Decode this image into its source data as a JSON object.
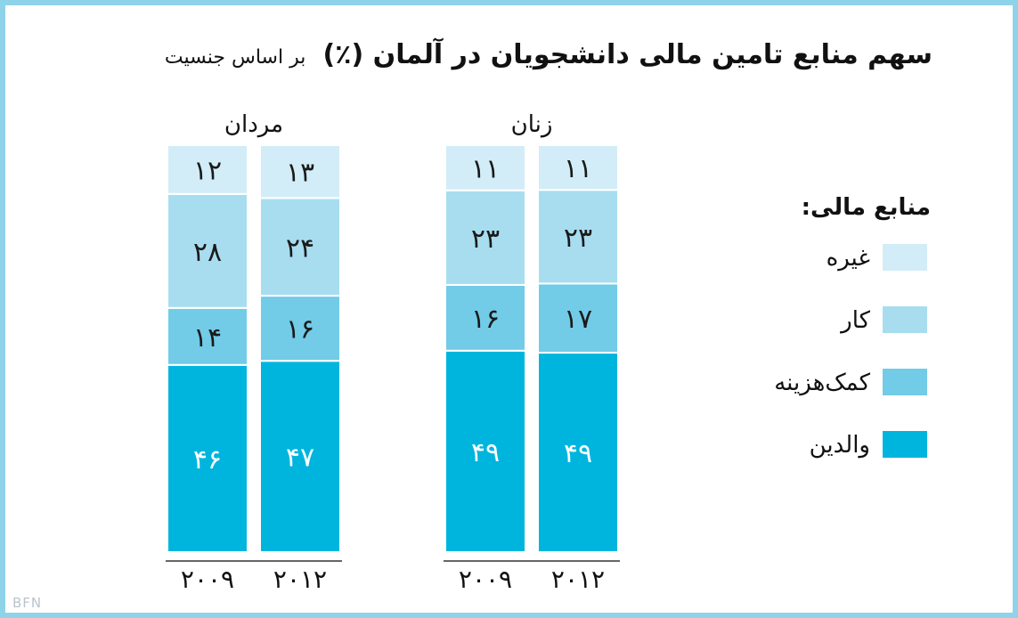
{
  "chart_data": {
    "type": "bar",
    "stacked": true,
    "normalized_percent": true,
    "title": "سهم منابع تامین مالی دانشجویان در آلمان (٪)",
    "subtitle": "بر اساس جنسیت",
    "legend_title": "منابع مالی:",
    "legend_position": "right",
    "grid": false,
    "ylim": [
      0,
      100
    ],
    "groups": [
      {
        "name": "مردان",
        "categories": [
          "۲۰۰۹",
          "۲۰۱۲"
        ],
        "series": [
          {
            "name": "والدین",
            "values": [
              46,
              47
            ],
            "labels": [
              "۴۶",
              "۴۷"
            ]
          },
          {
            "name": "کمک‌هزینه",
            "values": [
              14,
              16
            ],
            "labels": [
              "۱۴",
              "۱۶"
            ]
          },
          {
            "name": "کار",
            "values": [
              28,
              24
            ],
            "labels": [
              "۲۸",
              "۲۴"
            ]
          },
          {
            "name": "غیره",
            "values": [
              12,
              13
            ],
            "labels": [
              "۱۲",
              "۱۳"
            ]
          }
        ]
      },
      {
        "name": "زنان",
        "categories": [
          "۲۰۰۹",
          "۲۰۱۲"
        ],
        "series": [
          {
            "name": "والدین",
            "values": [
              49,
              49
            ],
            "labels": [
              "۴۹",
              "۴۹"
            ]
          },
          {
            "name": "کمک‌هزینه",
            "values": [
              16,
              17
            ],
            "labels": [
              "۱۶",
              "۱۷"
            ]
          },
          {
            "name": "کار",
            "values": [
              23,
              23
            ],
            "labels": [
              "۲۳",
              "۲۳"
            ]
          },
          {
            "name": "غیره",
            "values": [
              11,
              11
            ],
            "labels": [
              "۱۱",
              "۱۱"
            ]
          }
        ]
      }
    ],
    "legend": [
      {
        "name": "غیره",
        "color": "#d2edf7"
      },
      {
        "name": "کار",
        "color": "#a8ddf0"
      },
      {
        "name": "کمک‌هزینه",
        "color": "#72cbe7"
      },
      {
        "name": "والدین",
        "color": "#00b5dd"
      }
    ],
    "series_colors": {
      "والدین": "#00b5dd",
      "کمک‌هزینه": "#72cbe7",
      "کار": "#a8ddf0",
      "غیره": "#d2edf7"
    },
    "label_colors": {
      "والدین": "#ffffff",
      "کمک‌هزینه": "#1a1a1a",
      "کار": "#1a1a1a",
      "غیره": "#1a1a1a"
    }
  },
  "watermark": "BFN"
}
